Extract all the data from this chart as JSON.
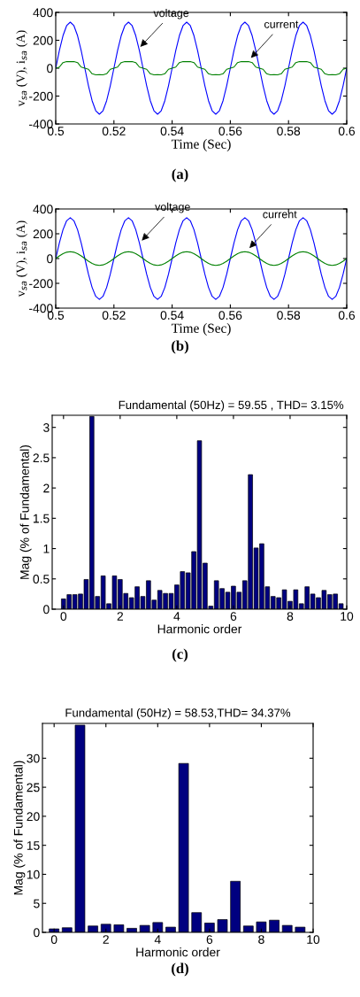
{
  "chart_data": [
    {
      "type": "line",
      "xlabel": "Time (Sec)",
      "ylabel": "v$_{sa}$ (V), i$_{sa}$ (A)",
      "xlim": [
        0.5,
        0.6
      ],
      "ylim": [
        -400,
        400
      ],
      "xticks": [
        0.5,
        0.52,
        0.54,
        0.56,
        0.58,
        0.6
      ],
      "yticks": [
        -400,
        -200,
        0,
        200,
        400
      ],
      "x": [
        0.5,
        0.50125,
        0.5025,
        0.50375,
        0.505,
        0.50625,
        0.5075,
        0.50875,
        0.51,
        0.51125,
        0.5125,
        0.51375,
        0.515,
        0.51625,
        0.5175,
        0.51875,
        0.52,
        0.52125,
        0.5225,
        0.52375,
        0.525,
        0.52625,
        0.5275,
        0.52875,
        0.53,
        0.53125,
        0.5325,
        0.53375,
        0.535,
        0.53625,
        0.5375,
        0.53875,
        0.54,
        0.54125,
        0.5425,
        0.54375,
        0.545,
        0.54625,
        0.5475,
        0.54875,
        0.55,
        0.55125,
        0.5525,
        0.55375,
        0.555,
        0.55625,
        0.5575,
        0.55875,
        0.56,
        0.56125,
        0.5625,
        0.56375,
        0.565,
        0.56625,
        0.5675,
        0.56875,
        0.57,
        0.57125,
        0.5725,
        0.57375,
        0.575,
        0.57625,
        0.5775,
        0.57875,
        0.58,
        0.58125,
        0.5825,
        0.58375,
        0.585,
        0.58625,
        0.5875,
        0.58875,
        0.59,
        0.59125,
        0.5925,
        0.59375,
        0.595,
        0.59625,
        0.5975,
        0.59875,
        0.6
      ],
      "series": [
        {
          "color": "#0000ff",
          "values": [
            0,
            126,
            233,
            305,
            330,
            305,
            233,
            126,
            0,
            -126,
            -233,
            -305,
            -330,
            -305,
            -233,
            -126,
            0,
            126,
            233,
            305,
            330,
            305,
            233,
            126,
            0,
            -126,
            -233,
            -305,
            -330,
            -305,
            -233,
            -126,
            0,
            126,
            233,
            305,
            330,
            305,
            233,
            126,
            0,
            -126,
            -233,
            -305,
            -330,
            -305,
            -233,
            -126,
            0,
            126,
            233,
            305,
            330,
            305,
            233,
            126,
            0,
            -126,
            -233,
            -305,
            -330,
            -305,
            -233,
            -126,
            0,
            126,
            233,
            305,
            330,
            305,
            233,
            126,
            0,
            -126,
            -233,
            -305,
            -330,
            -305,
            -233,
            -126,
            0
          ]
        },
        {
          "color": "#008000",
          "values": [
            0,
            8,
            40,
            48,
            47,
            48,
            40,
            8,
            0,
            -8,
            -40,
            -48,
            -47,
            -48,
            -40,
            -8,
            0,
            8,
            40,
            48,
            47,
            48,
            40,
            8,
            0,
            -8,
            -40,
            -48,
            -47,
            -48,
            -40,
            -8,
            0,
            8,
            40,
            48,
            47,
            48,
            40,
            8,
            0,
            -8,
            -40,
            -48,
            -47,
            -48,
            -40,
            -8,
            0,
            8,
            40,
            48,
            47,
            48,
            40,
            8,
            0,
            -8,
            -40,
            -48,
            -47,
            -48,
            -40,
            -8,
            0,
            8,
            40,
            48,
            47,
            48,
            40,
            8,
            0,
            -8,
            -40,
            -48,
            -47,
            -48,
            -40,
            -8,
            0
          ]
        }
      ],
      "annotations": [
        {
          "text": "voltage",
          "x": 0.5285,
          "y": 140
        },
        {
          "text": "current",
          "x": 0.5665,
          "y": 60
        },
        "(a)"
      ]
    },
    {
      "type": "line",
      "xlabel": "Time (Sec)",
      "ylabel": "v$_{sa}$ (V), i$_{sa}$ (A)",
      "xlim": [
        0.5,
        0.6
      ],
      "ylim": [
        -400,
        400
      ],
      "xticks": [
        0.5,
        0.52,
        0.54,
        0.56,
        0.58,
        0.6
      ],
      "yticks": [
        -400,
        -200,
        0,
        200,
        400
      ],
      "x": [
        0.5,
        0.50125,
        0.5025,
        0.50375,
        0.505,
        0.50625,
        0.5075,
        0.50875,
        0.51,
        0.51125,
        0.5125,
        0.51375,
        0.515,
        0.51625,
        0.5175,
        0.51875,
        0.52,
        0.52125,
        0.5225,
        0.52375,
        0.525,
        0.52625,
        0.5275,
        0.52875,
        0.53,
        0.53125,
        0.5325,
        0.53375,
        0.535,
        0.53625,
        0.5375,
        0.53875,
        0.54,
        0.54125,
        0.5425,
        0.54375,
        0.545,
        0.54625,
        0.5475,
        0.54875,
        0.55,
        0.55125,
        0.5525,
        0.55375,
        0.555,
        0.55625,
        0.5575,
        0.55875,
        0.56,
        0.56125,
        0.5625,
        0.56375,
        0.565,
        0.56625,
        0.5675,
        0.56875,
        0.57,
        0.57125,
        0.5725,
        0.57375,
        0.575,
        0.57625,
        0.5775,
        0.57875,
        0.58,
        0.58125,
        0.5825,
        0.58375,
        0.585,
        0.58625,
        0.5875,
        0.58875,
        0.59,
        0.59125,
        0.5925,
        0.59375,
        0.595,
        0.59625,
        0.5975,
        0.59875,
        0.6
      ],
      "series": [
        {
          "color": "#0000ff",
          "values": [
            0,
            126,
            233,
            305,
            330,
            305,
            233,
            126,
            0,
            -126,
            -233,
            -305,
            -330,
            -305,
            -233,
            -126,
            0,
            126,
            233,
            305,
            330,
            305,
            233,
            126,
            0,
            -126,
            -233,
            -305,
            -330,
            -305,
            -233,
            -126,
            0,
            126,
            233,
            305,
            330,
            305,
            233,
            126,
            0,
            -126,
            -233,
            -305,
            -330,
            -305,
            -233,
            -126,
            0,
            126,
            233,
            305,
            330,
            305,
            233,
            126,
            0,
            -126,
            -233,
            -305,
            -330,
            -305,
            -233,
            -126,
            0,
            126,
            233,
            305,
            330,
            305,
            233,
            126,
            0,
            -126,
            -233,
            -305,
            -330,
            -305,
            -233,
            -126,
            0
          ]
        },
        {
          "color": "#008000",
          "values": [
            0,
            21,
            39,
            51,
            55,
            51,
            39,
            21,
            0,
            -21,
            -39,
            -51,
            -55,
            -51,
            -39,
            -21,
            0,
            21,
            39,
            51,
            55,
            51,
            39,
            21,
            0,
            -21,
            -39,
            -51,
            -55,
            -51,
            -39,
            -21,
            0,
            21,
            39,
            51,
            55,
            51,
            39,
            21,
            0,
            -21,
            -39,
            -51,
            -55,
            -51,
            -39,
            -21,
            0,
            21,
            39,
            51,
            55,
            51,
            39,
            21,
            0,
            -21,
            -39,
            -51,
            -55,
            -51,
            -39,
            -21,
            0,
            21,
            39,
            51,
            55,
            51,
            39,
            21,
            0,
            -21,
            -39,
            -51,
            -55,
            -51,
            -39,
            -21,
            0
          ]
        }
      ],
      "annotations": [
        {
          "text": "voltage",
          "x": 0.529,
          "y": 130
        },
        {
          "text": "current",
          "x": 0.566,
          "y": 70
        },
        "(b)"
      ]
    },
    {
      "type": "bar",
      "title": "Fundamental (50Hz) = 59.55 , THD= 3.15%",
      "xlabel": "Harmonic order",
      "ylabel": "Mag (% of Fundamental)",
      "xlim": [
        -0.4,
        10
      ],
      "ylim": [
        0,
        3.2
      ],
      "xticks": [
        0,
        2,
        4,
        6,
        8,
        10
      ],
      "yticks": [
        0,
        0.5,
        1,
        1.5,
        2,
        2.5,
        3
      ],
      "color": "#000080",
      "x": [
        0,
        0.2,
        0.4,
        0.6,
        0.8,
        1,
        1.2,
        1.4,
        1.6,
        1.8,
        2,
        2.2,
        2.4,
        2.6,
        2.8,
        3,
        3.2,
        3.4,
        3.6,
        3.8,
        4,
        4.2,
        4.4,
        4.6,
        4.8,
        5,
        5.2,
        5.4,
        5.6,
        5.8,
        6,
        6.2,
        6.4,
        6.6,
        6.8,
        7,
        7.2,
        7.4,
        7.6,
        7.8,
        8,
        8.2,
        8.4,
        8.6,
        8.8,
        9,
        9.2,
        9.4,
        9.6,
        9.8
      ],
      "values": [
        0.17,
        0.24,
        0.24,
        0.25,
        0.49,
        3.18,
        0.21,
        0.55,
        0.09,
        0.55,
        0.49,
        0.26,
        0.19,
        0.37,
        0.21,
        0.47,
        0.15,
        0.31,
        0.26,
        0.26,
        0.4,
        0.62,
        0.6,
        0.95,
        2.78,
        0.76,
        0.05,
        0.47,
        0.34,
        0.28,
        0.38,
        0.28,
        0.47,
        2.22,
        1.01,
        1.08,
        0.37,
        0.21,
        0.19,
        0.32,
        0.13,
        0.32,
        0.09,
        0.37,
        0.25,
        0.19,
        0.31,
        0.24,
        0.25,
        0.09
      ],
      "annotations": [
        "(c)"
      ]
    },
    {
      "type": "bar",
      "title": "Fundamental (50Hz) = 58.53,THD= 34.37%",
      "xlabel": "Harmonic order",
      "ylabel": "Mag (% of Fundamental)",
      "xlim": [
        -0.45,
        10
      ],
      "ylim": [
        0,
        36
      ],
      "xticks": [
        0,
        2,
        4,
        6,
        8,
        10
      ],
      "yticks": [
        0,
        5,
        10,
        15,
        20,
        25,
        30
      ],
      "color": "#000080",
      "x": [
        0,
        0.5,
        1,
        1.5,
        2,
        2.5,
        3,
        3.5,
        4,
        4.5,
        5,
        5.5,
        6,
        6.5,
        7,
        7.5,
        8,
        8.5,
        9,
        9.5
      ],
      "values": [
        0.6,
        0.8,
        35.7,
        1.1,
        1.4,
        1.3,
        0.7,
        1.2,
        1.7,
        0.9,
        29.1,
        3.4,
        1.6,
        2.2,
        8.8,
        1.1,
        1.8,
        2.1,
        1.2,
        0.9
      ],
      "annotations": [
        "(d)"
      ]
    }
  ]
}
